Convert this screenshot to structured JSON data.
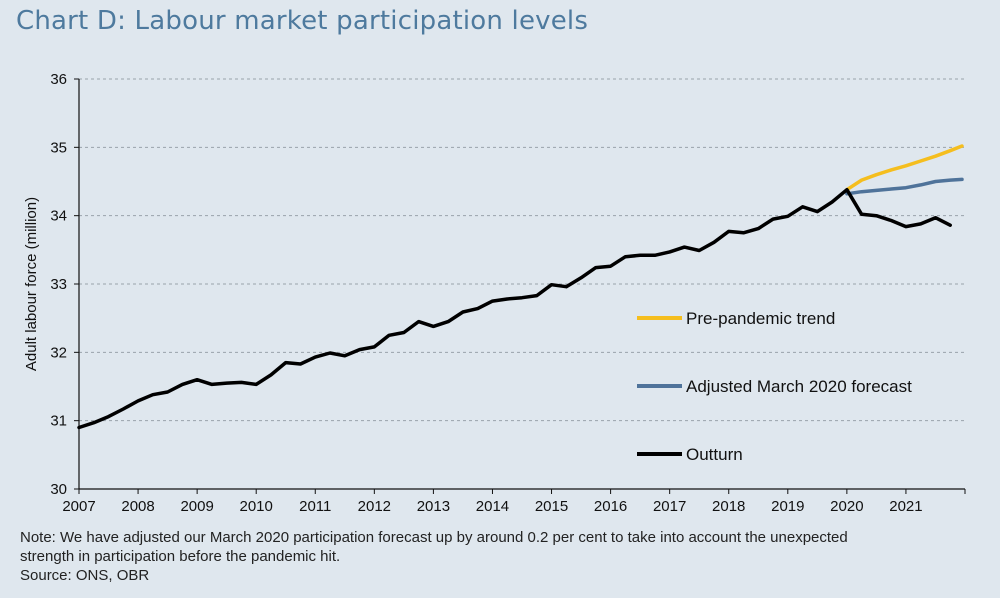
{
  "title": "Chart D: Labour market participation levels",
  "note_line1": "Note: We have adjusted our March 2020 participation forecast up by around 0.2  per cent to take into account the unexpected",
  "note_line2": "strength in participation before the pandemic hit.",
  "source": "Source: ONS, OBR",
  "colors": {
    "background": "#dfe7ee",
    "title": "#4e7a9e",
    "outturn": "#000000",
    "pre_pandemic": "#f5be1e",
    "adjusted": "#4f739a",
    "grid": "#9aa3ab"
  },
  "chart_data": {
    "type": "line",
    "title": "Chart D: Labour market participation levels",
    "xlabel": "",
    "ylabel": "Adult labour force (million)",
    "xlim": [
      2007,
      2022
    ],
    "ylim": [
      30,
      36
    ],
    "yticks": [
      30,
      31,
      32,
      33,
      34,
      35,
      36
    ],
    "xticks": [
      2007,
      2008,
      2009,
      2010,
      2011,
      2012,
      2013,
      2014,
      2015,
      2016,
      2017,
      2018,
      2019,
      2020,
      2021
    ],
    "grid": "horizontal dashed",
    "legend_position": "right",
    "series": [
      {
        "name": "Pre-pandemic trend",
        "color": "#f5be1e",
        "x": [
          2020.0,
          2020.25,
          2020.5,
          2020.75,
          2021.0,
          2021.25,
          2021.5,
          2021.75,
          2021.95
        ],
        "y": [
          34.38,
          34.52,
          34.6,
          34.67,
          34.73,
          34.8,
          34.87,
          34.95,
          35.02
        ]
      },
      {
        "name": "Adjusted March 2020 forecast",
        "color": "#4f739a",
        "x": [
          2020.0,
          2020.25,
          2020.5,
          2020.75,
          2021.0,
          2021.25,
          2021.5,
          2021.75,
          2021.95
        ],
        "y": [
          34.32,
          34.35,
          34.37,
          34.39,
          34.41,
          34.45,
          34.5,
          34.52,
          34.53
        ]
      },
      {
        "name": "Outturn",
        "color": "#000000",
        "x": [
          2007.0,
          2007.25,
          2007.5,
          2007.75,
          2008.0,
          2008.25,
          2008.5,
          2008.75,
          2009.0,
          2009.25,
          2009.5,
          2009.75,
          2010.0,
          2010.25,
          2010.5,
          2010.75,
          2011.0,
          2011.25,
          2011.5,
          2011.75,
          2012.0,
          2012.25,
          2012.5,
          2012.75,
          2013.0,
          2013.25,
          2013.5,
          2013.75,
          2014.0,
          2014.25,
          2014.5,
          2014.75,
          2015.0,
          2015.25,
          2015.5,
          2015.75,
          2016.0,
          2016.25,
          2016.5,
          2016.75,
          2017.0,
          2017.25,
          2017.5,
          2017.75,
          2018.0,
          2018.25,
          2018.5,
          2018.75,
          2019.0,
          2019.25,
          2019.5,
          2019.75,
          2020.0,
          2020.25,
          2020.5,
          2020.75,
          2021.0,
          2021.25,
          2021.5,
          2021.75
        ],
        "y": [
          30.9,
          30.97,
          31.06,
          31.17,
          31.29,
          31.38,
          31.42,
          31.53,
          31.6,
          31.53,
          31.55,
          31.56,
          31.53,
          31.67,
          31.85,
          31.83,
          31.93,
          31.99,
          31.95,
          32.04,
          32.08,
          32.25,
          32.29,
          32.45,
          32.38,
          32.45,
          32.59,
          32.64,
          32.75,
          32.78,
          32.8,
          32.83,
          32.99,
          32.96,
          33.09,
          33.24,
          33.26,
          33.4,
          33.42,
          33.42,
          33.47,
          33.54,
          33.49,
          33.61,
          33.77,
          33.75,
          33.81,
          33.95,
          33.99,
          34.13,
          34.06,
          34.2,
          34.38,
          34.02,
          34.0,
          33.93,
          33.84,
          33.88,
          33.97,
          33.86
        ]
      }
    ]
  }
}
